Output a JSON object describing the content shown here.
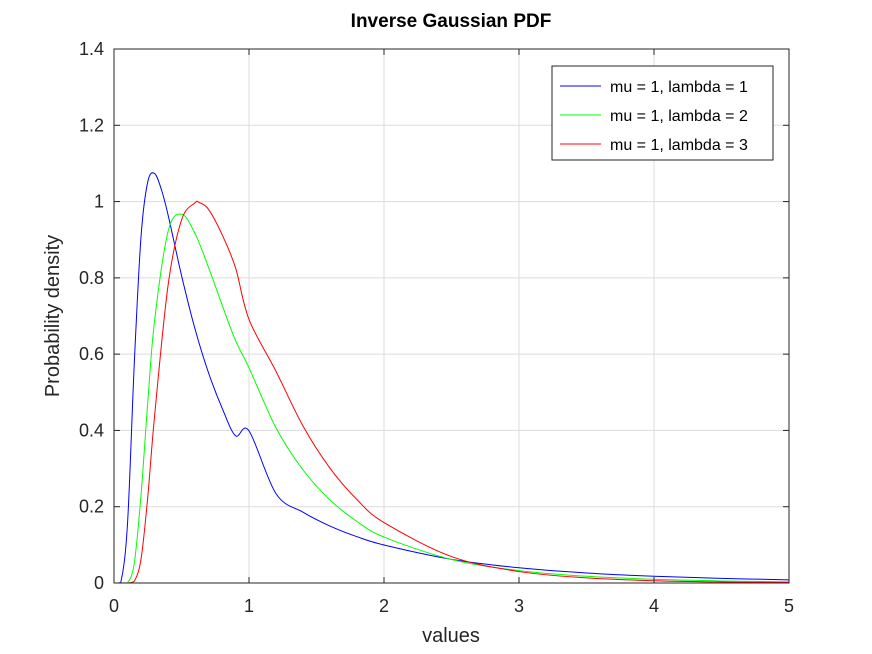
{
  "chart_data": {
    "type": "line",
    "title": "Inverse Gaussian PDF",
    "xlabel": "values",
    "ylabel": "Probability density",
    "xlim": [
      0,
      5
    ],
    "ylim": [
      0,
      1.4
    ],
    "xticks": [
      0,
      1,
      2,
      3,
      4,
      5
    ],
    "xtick_labels": [
      "0",
      "1",
      "2",
      "3",
      "4",
      "5"
    ],
    "yticks": [
      0,
      0.2,
      0.4,
      0.6,
      0.8,
      1,
      1.2,
      1.4
    ],
    "ytick_labels": [
      "0",
      "0.2",
      "0.4",
      "0.6",
      "0.8",
      "1",
      "1.2",
      "1.4"
    ],
    "grid": true,
    "legend_position": "top-right",
    "series": [
      {
        "name": "mu = 1, lambda = 1",
        "color": "#0000ff",
        "x": [
          0.05,
          0.1,
          0.15,
          0.2,
          0.25,
          0.3,
          0.35,
          0.4,
          0.5,
          0.6,
          0.7,
          0.8,
          0.9,
          1.0,
          1.2,
          1.4,
          1.6,
          1.8,
          2.0,
          2.5,
          3.0,
          3.5,
          4.0,
          4.5,
          5.0
        ],
        "y": [
          0.0011,
          0.1554,
          0.5739,
          0.9072,
          1.0516,
          1.0737,
          1.0326,
          0.9658,
          0.8066,
          0.6662,
          0.5512,
          0.4594,
          0.3861,
          0.3989,
          0.2343,
          0.1857,
          0.1493,
          0.1214,
          0.0996,
          0.062,
          0.0399,
          0.0263,
          0.0177,
          0.0121,
          0.0083
        ]
      },
      {
        "name": "mu = 1, lambda = 2",
        "color": "#00ff00",
        "x": [
          0.05,
          0.1,
          0.15,
          0.2,
          0.25,
          0.3,
          0.4,
          0.5,
          0.6,
          0.7,
          0.8,
          0.9,
          1.0,
          1.2,
          1.4,
          1.6,
          1.8,
          2.0,
          2.5,
          3.0,
          3.5,
          4.0,
          4.5,
          5.0
        ],
        "y": [
          0.0,
          0.0006,
          0.0513,
          0.23,
          0.473,
          0.686,
          0.921,
          0.9672,
          0.9162,
          0.8276,
          0.7297,
          0.6359,
          0.5642,
          0.4067,
          0.2966,
          0.2177,
          0.1612,
          0.1205,
          0.0616,
          0.0326,
          0.0176,
          0.0097,
          0.0054,
          0.0031
        ]
      },
      {
        "name": "mu = 1, lambda = 3",
        "color": "#ff0000",
        "x": [
          0.05,
          0.1,
          0.15,
          0.2,
          0.25,
          0.3,
          0.4,
          0.5,
          0.6,
          0.63,
          0.7,
          0.8,
          0.9,
          1.0,
          1.2,
          1.4,
          1.6,
          1.8,
          2.0,
          2.5,
          3.0,
          3.5,
          4.0,
          4.5,
          5.0
        ],
        "y": [
          0.0,
          0.0,
          0.0045,
          0.062,
          0.2252,
          0.4354,
          0.779,
          0.9515,
          0.9966,
          0.9977,
          0.9798,
          0.9139,
          0.8266,
          0.691,
          0.5549,
          0.4115,
          0.3009,
          0.2185,
          0.1586,
          0.0693,
          0.03,
          0.0134,
          0.006,
          0.0027,
          0.0013
        ]
      }
    ]
  }
}
